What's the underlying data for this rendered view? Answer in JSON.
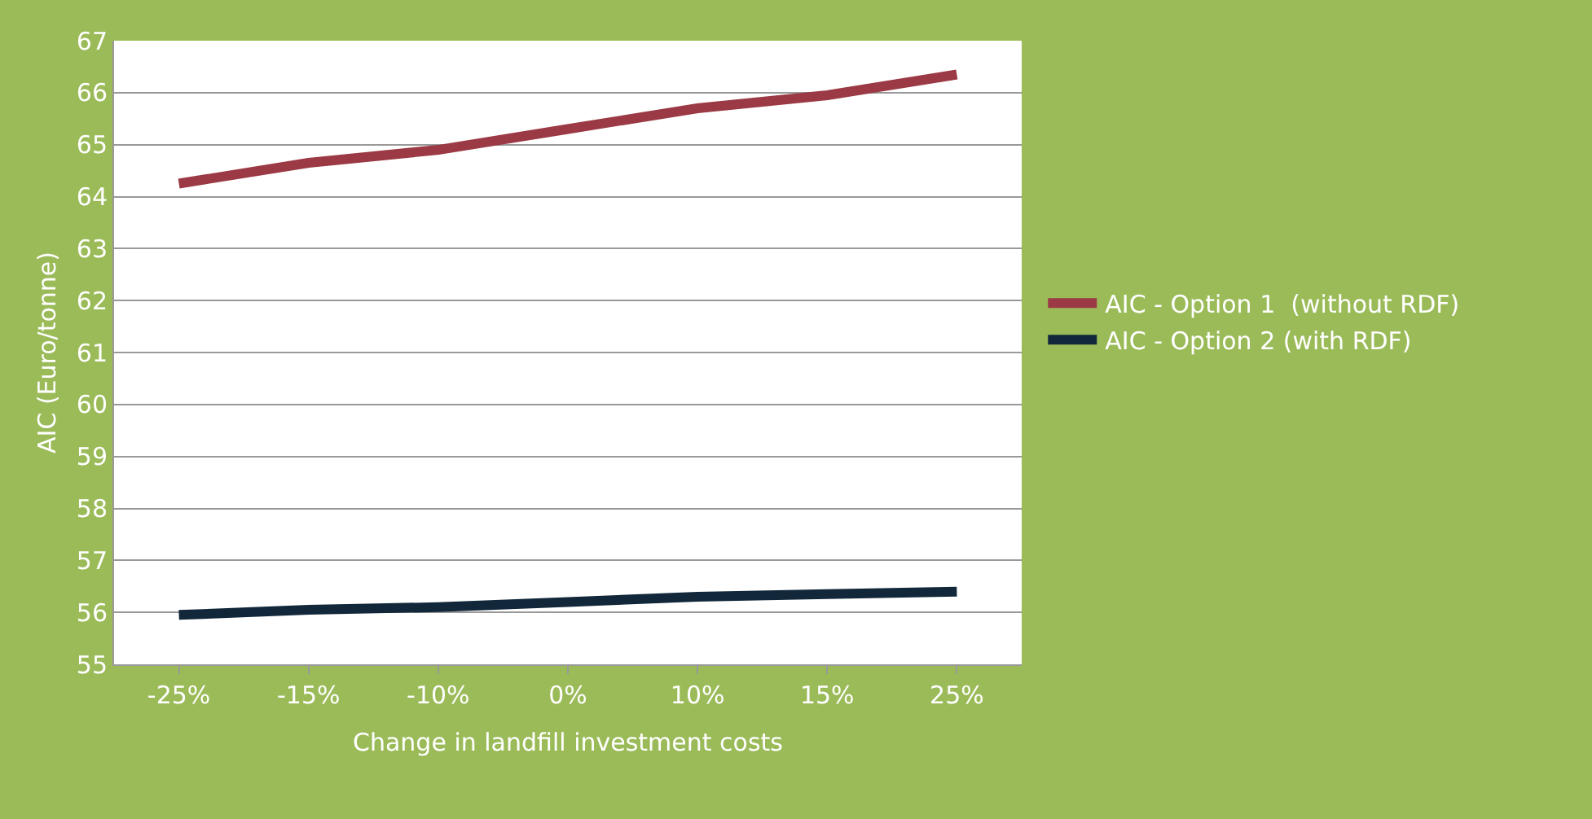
{
  "chart_data": {
    "type": "line",
    "xlabel": "Change in landfill investment costs",
    "ylabel": "AIC (Euro/tonne)",
    "categories": [
      "-25%",
      "-15%",
      "-10%",
      "0%",
      "10%",
      "15%",
      "25%"
    ],
    "series": [
      {
        "name": "AIC - Option 1  (without RDF)",
        "color": "#9b3a44",
        "values": [
          64.25,
          64.65,
          64.9,
          65.3,
          65.7,
          65.95,
          66.35
        ]
      },
      {
        "name": "AIC - Option 2 (with RDF)",
        "color": "#12283a",
        "values": [
          55.95,
          56.05,
          56.1,
          56.2,
          56.3,
          56.35,
          56.4
        ]
      }
    ],
    "ylim": [
      55,
      67
    ],
    "yticks": [
      55,
      56,
      57,
      58,
      59,
      60,
      61,
      62,
      63,
      64,
      65,
      66,
      67
    ],
    "grid": "y",
    "legend": "right",
    "marker": "none",
    "line_style": "solid"
  }
}
